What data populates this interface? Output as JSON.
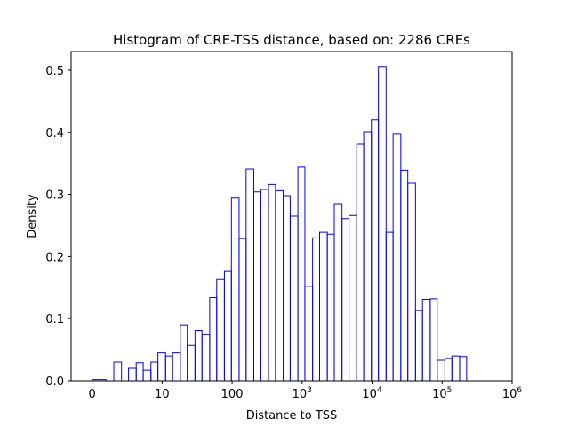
{
  "chart_data": {
    "type": "histogram",
    "title": "Histogram of CRE-TSS distance, based on: 2286 CREs",
    "xlabel": "Distance to TSS",
    "ylabel": "Density",
    "x_scale": "symlog",
    "xlim": [
      -0.3,
      6.0
    ],
    "ylim": [
      0,
      0.53
    ],
    "grid": false,
    "legend": "none",
    "step_color": "#0000ff",
    "x_ticks": [
      {
        "label": "0",
        "value": 0
      },
      {
        "label": "10",
        "value": 10
      },
      {
        "label": "100",
        "value": 100
      },
      {
        "label": "10^3",
        "base": "10",
        "exp": "3",
        "value": 1000
      },
      {
        "label": "10^4",
        "base": "10",
        "exp": "4",
        "value": 10000
      },
      {
        "label": "10^5",
        "base": "10",
        "exp": "5",
        "value": 100000
      },
      {
        "label": "10^6",
        "base": "10",
        "exp": "6",
        "value": 1000000
      }
    ],
    "y_ticks": [
      "0.0",
      "0.1",
      "0.2",
      "0.3",
      "0.4",
      "0.5"
    ],
    "bin_edges_log10": [
      0.0,
      0.2,
      0.31,
      0.42,
      0.52,
      0.63,
      0.73,
      0.84,
      0.94,
      1.05,
      1.15,
      1.26,
      1.36,
      1.47,
      1.57,
      1.68,
      1.78,
      1.89,
      1.99,
      2.1,
      2.2,
      2.31,
      2.41,
      2.52,
      2.62,
      2.73,
      2.83,
      2.94,
      3.04,
      3.15,
      3.25,
      3.36,
      3.46,
      3.57,
      3.67,
      3.78,
      3.88,
      3.99,
      4.09,
      4.2,
      4.3,
      4.41,
      4.51,
      4.62,
      4.72,
      4.83,
      4.93,
      5.04,
      5.14,
      5.25,
      5.35
    ],
    "densities": [
      0.002,
      0.0,
      0.03,
      0.0,
      0.02,
      0.029,
      0.017,
      0.03,
      0.045,
      0.04,
      0.045,
      0.09,
      0.057,
      0.081,
      0.074,
      0.134,
      0.163,
      0.176,
      0.294,
      0.229,
      0.341,
      0.304,
      0.308,
      0.316,
      0.306,
      0.298,
      0.265,
      0.344,
      0.152,
      0.23,
      0.239,
      0.236,
      0.285,
      0.261,
      0.266,
      0.381,
      0.401,
      0.42,
      0.506,
      0.239,
      0.397,
      0.339,
      0.318,
      0.113,
      0.131,
      0.132,
      0.033,
      0.036,
      0.04,
      0.039
    ]
  }
}
